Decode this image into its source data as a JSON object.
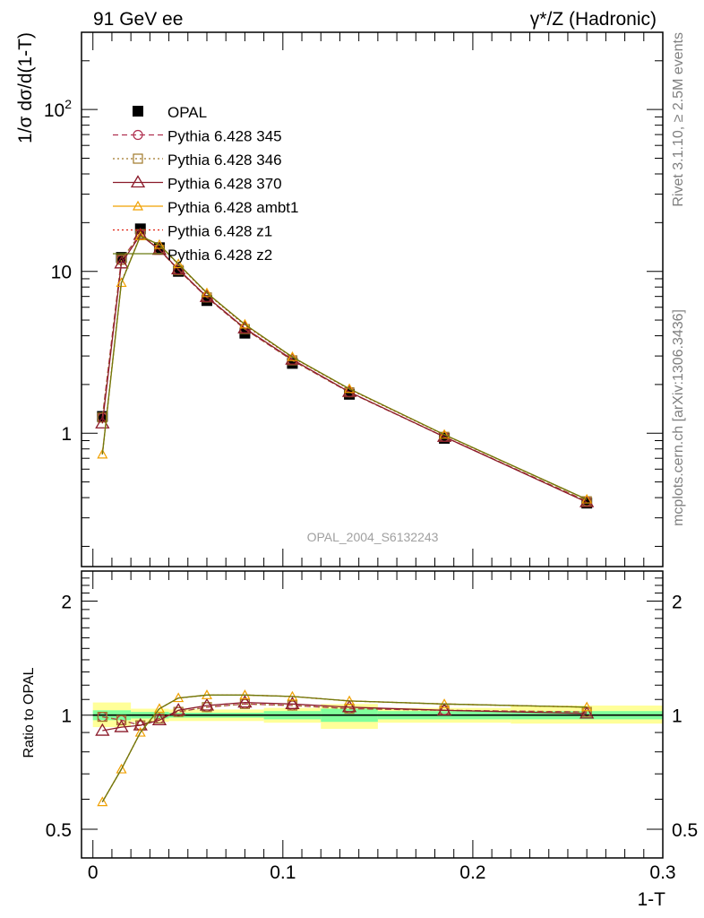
{
  "header": {
    "left": "91 GeV ee",
    "right": "γ*/Z (Hadronic)"
  },
  "side_text": {
    "rivet": "Rivet 3.1.10, ≥ 2.5M events",
    "site": "mcplots.cern.ch [arXiv:1306.3436]"
  },
  "watermark": "OPAL_2004_S6132243",
  "colors": {
    "OPAL": "#000000",
    "Pythia 6.428 345": "#b03050",
    "Pythia 6.428 346": "#a07828",
    "Pythia 6.428 370": "#8b1a2a",
    "Pythia 6.428 ambt1": "#f0a000",
    "Pythia 6.428 z1": "#e02010",
    "Pythia 6.428 z2": "#6b7a10",
    "band_inner": "#80ff9c",
    "band_outer": "#ffff99"
  },
  "chart_data": [
    {
      "type": "line",
      "panel": "main",
      "ylabel": "1/σ dσ/d(1-T)",
      "yscale": "log",
      "ylim": [
        0.15,
        300
      ],
      "xlim": [
        -0.006,
        0.3
      ],
      "yticks": [
        "1",
        "10",
        "10^2"
      ],
      "x": [
        0.005,
        0.015,
        0.025,
        0.035,
        0.045,
        0.06,
        0.08,
        0.105,
        0.135,
        0.185,
        0.26
      ],
      "series": [
        {
          "name": "OPAL",
          "marker": "square-filled",
          "values": [
            1.27,
            12.2,
            18.3,
            14.0,
            10.0,
            6.6,
            4.15,
            2.7,
            1.74,
            0.93,
            0.37
          ]
        },
        {
          "name": "Pythia 6.428 345",
          "marker": "circle-open",
          "dash": "dashed",
          "values": [
            1.25,
            11.8,
            17.0,
            13.6,
            10.2,
            6.9,
            4.4,
            2.82,
            1.79,
            0.95,
            0.38
          ]
        },
        {
          "name": "Pythia 6.428 346",
          "marker": "square-open",
          "dash": "dotted",
          "values": [
            1.25,
            11.8,
            17.0,
            13.6,
            10.2,
            6.9,
            4.4,
            2.82,
            1.79,
            0.95,
            0.38
          ]
        },
        {
          "name": "Pythia 6.428 370",
          "marker": "triangle-open",
          "dash": "solid",
          "values": [
            1.15,
            11.2,
            16.8,
            13.6,
            10.3,
            6.95,
            4.45,
            2.85,
            1.8,
            0.95,
            0.375
          ]
        },
        {
          "name": "Pythia 6.428 ambt1",
          "marker": "triangle-small",
          "dash": "solid",
          "values": [
            0.74,
            8.5,
            16.5,
            14.6,
            11.1,
            7.35,
            4.7,
            2.96,
            1.88,
            0.98,
            0.39
          ]
        },
        {
          "name": "Pythia 6.428 z1",
          "marker": "none",
          "dash": "dotted",
          "values": [
            0.75,
            8.6,
            16.6,
            14.6,
            11.0,
            7.3,
            4.65,
            2.94,
            1.87,
            0.975,
            0.39
          ]
        },
        {
          "name": "Pythia 6.428 z2",
          "marker": "none",
          "dash": "solid",
          "values": [
            0.74,
            8.5,
            16.5,
            14.6,
            11.1,
            7.35,
            4.7,
            2.96,
            1.88,
            0.98,
            0.39
          ]
        }
      ]
    },
    {
      "type": "line",
      "panel": "ratio",
      "ylabel": "Ratio to OPAL",
      "xlabel": "1-T",
      "yscale": "log",
      "ylim": [
        0.42,
        2.4
      ],
      "xlim": [
        -0.006,
        0.3
      ],
      "yticks": [
        "0.5",
        "1",
        "2"
      ],
      "xticks": [
        "0",
        "0.1",
        "0.2",
        "0.3"
      ],
      "x": [
        0.005,
        0.015,
        0.025,
        0.035,
        0.045,
        0.06,
        0.08,
        0.105,
        0.135,
        0.185,
        0.26
      ],
      "bands": [
        {
          "x0": 0.0,
          "x1": 0.02,
          "inner": [
            0.97,
            1.03
          ],
          "outer": [
            0.93,
            1.08
          ]
        },
        {
          "x0": 0.02,
          "x1": 0.04,
          "inner": [
            0.98,
            1.02
          ],
          "outer": [
            0.96,
            1.04
          ]
        },
        {
          "x0": 0.04,
          "x1": 0.09,
          "inner": [
            0.985,
            1.015
          ],
          "outer": [
            0.965,
            1.035
          ]
        },
        {
          "x0": 0.09,
          "x1": 0.12,
          "inner": [
            0.975,
            1.025
          ],
          "outer": [
            0.955,
            1.045
          ]
        },
        {
          "x0": 0.12,
          "x1": 0.15,
          "inner": [
            0.96,
            1.04
          ],
          "outer": [
            0.92,
            1.07
          ]
        },
        {
          "x0": 0.15,
          "x1": 0.22,
          "inner": [
            0.975,
            1.025
          ],
          "outer": [
            0.955,
            1.045
          ]
        },
        {
          "x0": 0.22,
          "x1": 0.3,
          "inner": [
            0.975,
            1.025
          ],
          "outer": [
            0.95,
            1.06
          ]
        }
      ],
      "series": [
        {
          "name": "Pythia 6.428 345",
          "marker": "circle-open",
          "dash": "dashed",
          "values": [
            0.99,
            0.97,
            0.94,
            0.98,
            1.02,
            1.05,
            1.07,
            1.06,
            1.04,
            1.03,
            1.02
          ]
        },
        {
          "name": "Pythia 6.428 346",
          "marker": "square-open",
          "dash": "dotted",
          "values": [
            0.99,
            0.97,
            0.94,
            0.98,
            1.02,
            1.05,
            1.07,
            1.06,
            1.04,
            1.03,
            1.02
          ]
        },
        {
          "name": "Pythia 6.428 370",
          "marker": "triangle-open",
          "dash": "solid",
          "values": [
            0.91,
            0.93,
            0.94,
            0.97,
            1.03,
            1.06,
            1.08,
            1.07,
            1.05,
            1.03,
            1.01
          ]
        },
        {
          "name": "Pythia 6.428 ambt1",
          "marker": "triangle-small",
          "dash": "solid",
          "values": [
            0.59,
            0.72,
            0.9,
            1.04,
            1.11,
            1.13,
            1.13,
            1.12,
            1.09,
            1.07,
            1.05
          ]
        },
        {
          "name": "Pythia 6.428 z1",
          "marker": "none",
          "dash": "dotted",
          "values": [
            0.59,
            0.72,
            0.9,
            1.04,
            1.11,
            1.13,
            1.13,
            1.12,
            1.09,
            1.07,
            1.05
          ]
        },
        {
          "name": "Pythia 6.428 z2",
          "marker": "none",
          "dash": "solid",
          "values": [
            0.59,
            0.72,
            0.9,
            1.04,
            1.11,
            1.13,
            1.13,
            1.12,
            1.09,
            1.07,
            1.05
          ]
        }
      ]
    }
  ]
}
